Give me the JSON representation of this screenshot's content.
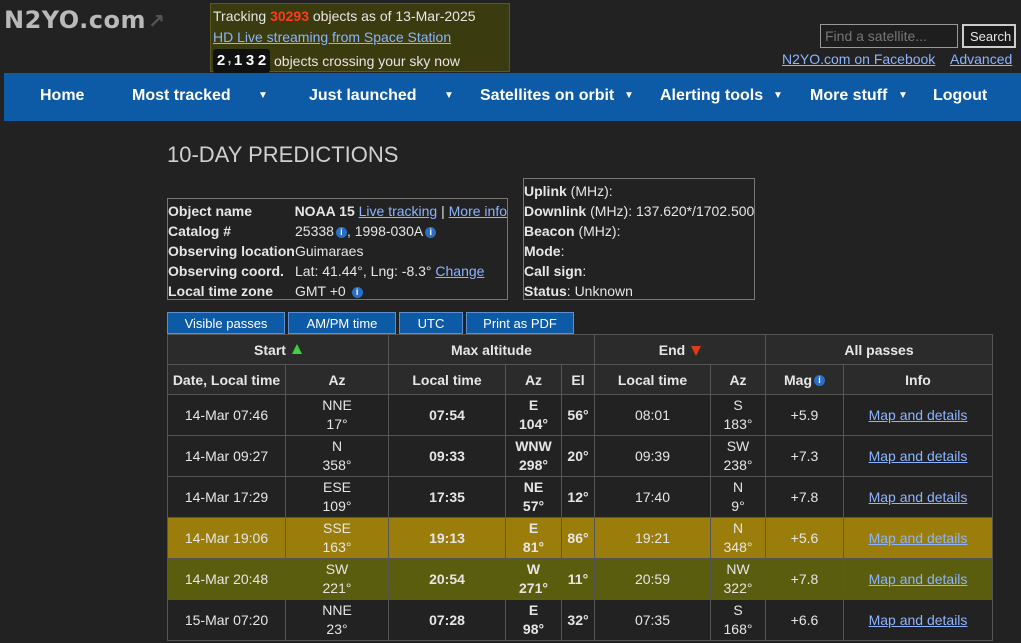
{
  "logo": "N2YO.com",
  "tracker": {
    "prefix": "Tracking",
    "count": "30293",
    "suffix": "objects as of 13-Mar-2025",
    "live_link": "HD Live streaming from Space Station",
    "digits": [
      "2",
      "1",
      "3",
      "2"
    ],
    "crossing_text": "objects crossing your sky now"
  },
  "search": {
    "placeholder": "Find a satellite...",
    "button": "Search"
  },
  "links": {
    "facebook": "N2YO.com on Facebook",
    "advanced": "Advanced"
  },
  "nav": [
    "Home",
    "Most tracked",
    "Just launched",
    "Satellites on orbit",
    "Alerting tools",
    "More stuff",
    "Logout"
  ],
  "page_title": "10-DAY PREDICTIONS",
  "object": {
    "name_label": "Object name",
    "name": "NOAA 15",
    "live_tracking": "Live tracking",
    "separator": "|",
    "more_info": "More info",
    "catalog_label": "Catalog #",
    "catalog": "25338",
    "intl": ", 1998-030A",
    "location_label": "Observing location",
    "location": "Guimaraes",
    "coord_label": "Observing coord.",
    "coord": "Lat: 41.44°, Lng: -8.3°",
    "change": "Change",
    "tz_label": "Local time zone",
    "tz": "GMT +0"
  },
  "radio": {
    "uplink_label": "Uplink",
    "uplink_unit": " (MHz):",
    "downlink_label": "Downlink",
    "downlink_value": " (MHz): 137.620*/1702.500",
    "beacon_label": "Beacon",
    "beacon_unit": " (MHz):",
    "mode_label": "Mode",
    "mode_colon": ":",
    "callsign_label": "Call sign",
    "callsign_colon": ":",
    "status_label": "Status",
    "status_value": ": Unknown"
  },
  "buttons": [
    "Visible passes",
    "AM/PM time",
    "UTC",
    "Print as PDF"
  ],
  "table": {
    "group_headers": [
      "Start",
      "Max altitude",
      "End",
      "All passes"
    ],
    "sub_headers": [
      "Date, Local time",
      "Az",
      "Local time",
      "Az",
      "El",
      "Local time",
      "Az",
      "Mag",
      "Info"
    ],
    "link_text": "Map and details",
    "rows": [
      {
        "start": "14-Mar 07:46",
        "saz": "NNE",
        "sazd": "17°",
        "max": "07:54",
        "maz": "E",
        "mazd": "104°",
        "el": "56°",
        "end": "08:01",
        "eaz": "S",
        "eazd": "183°",
        "mag": "+5.9",
        "hl": "none"
      },
      {
        "start": "14-Mar 09:27",
        "saz": "N",
        "sazd": "358°",
        "max": "09:33",
        "maz": "WNW",
        "mazd": "298°",
        "el": "20°",
        "end": "09:39",
        "eaz": "SW",
        "eazd": "238°",
        "mag": "+7.3",
        "hl": "none"
      },
      {
        "start": "14-Mar 17:29",
        "saz": "ESE",
        "sazd": "109°",
        "max": "17:35",
        "maz": "NE",
        "mazd": "57°",
        "el": "12°",
        "end": "17:40",
        "eaz": "N",
        "eazd": "9°",
        "mag": "+7.8",
        "hl": "none"
      },
      {
        "start": "14-Mar 19:06",
        "saz": "SSE",
        "sazd": "163°",
        "max": "19:13",
        "maz": "E",
        "mazd": "81°",
        "el": "86°",
        "end": "19:21",
        "eaz": "N",
        "eazd": "348°",
        "mag": "+5.6",
        "hl": "gold"
      },
      {
        "start": "14-Mar 20:48",
        "saz": "SW",
        "sazd": "221°",
        "max": "20:54",
        "maz": "W",
        "mazd": "271°",
        "el": "11°",
        "end": "20:59",
        "eaz": "NW",
        "eazd": "322°",
        "mag": "+7.8",
        "hl": "olive"
      },
      {
        "start": "15-Mar 07:20",
        "saz": "NNE",
        "sazd": "23°",
        "max": "07:28",
        "maz": "E",
        "mazd": "98°",
        "el": "32°",
        "end": "07:35",
        "eaz": "S",
        "eazd": "168°",
        "mag": "+6.6",
        "hl": "none"
      }
    ]
  },
  "colors": {
    "nav_bg": "#0d5aa7",
    "highlight_gold": "#9a7d0b",
    "highlight_olive": "#5a5c0e",
    "count_red": "#ff3b1f"
  }
}
